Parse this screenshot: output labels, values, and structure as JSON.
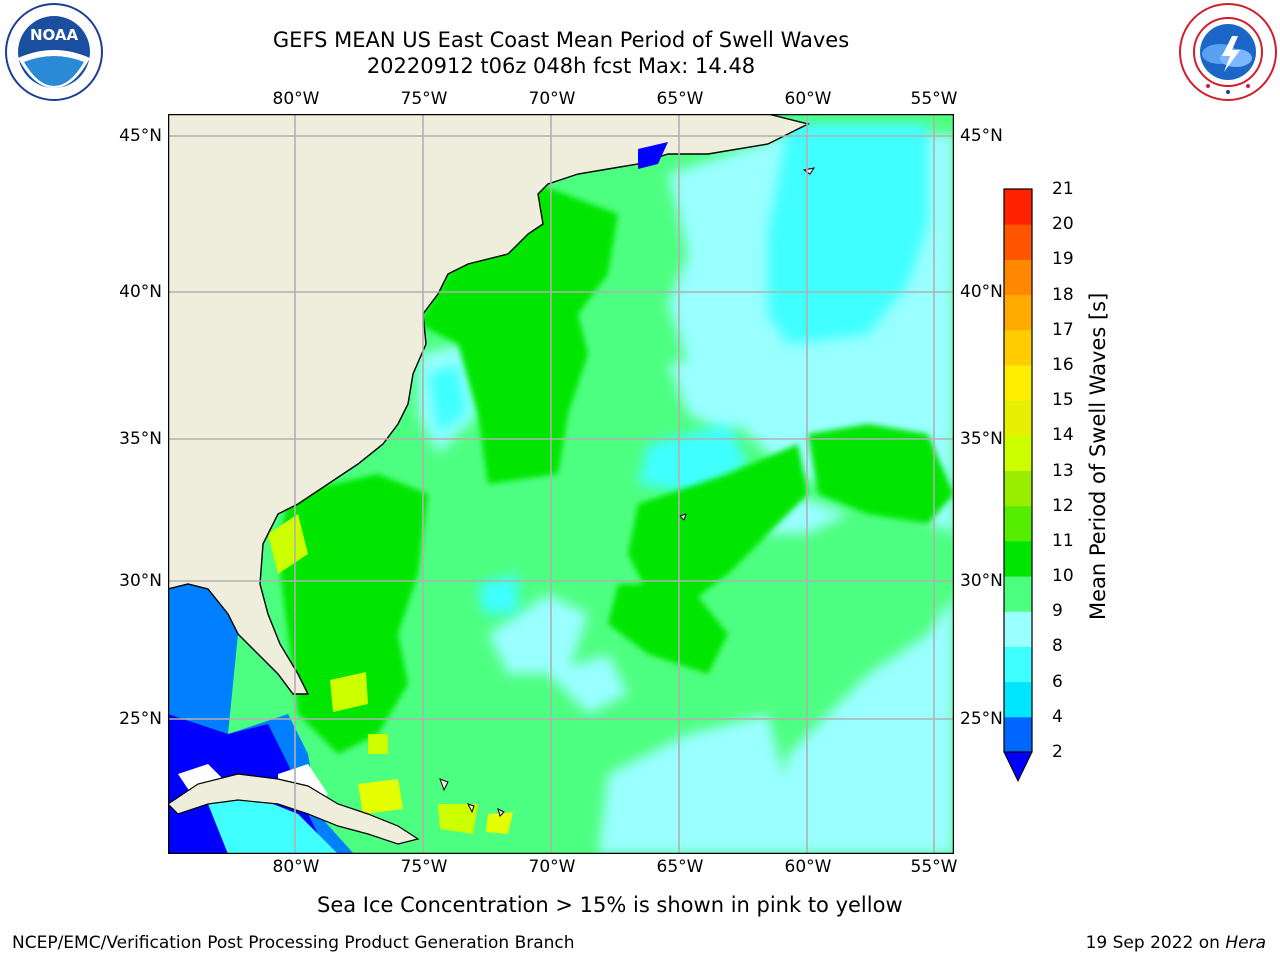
{
  "header": {
    "title_line1": "GEFS MEAN US East Coast Mean Period of Swell Waves",
    "title_line2": "20220912 t06z 048h fcst   Max: 14.48"
  },
  "logos": {
    "left": {
      "icon": "noaa-logo-icon",
      "text": "NOAA"
    },
    "right": {
      "icon": "nws-logo-icon",
      "text": "NATIONAL WEATHER SERVICE"
    }
  },
  "map": {
    "lon_ticks": [
      "80°W",
      "75°W",
      "70°W",
      "65°W",
      "60°W",
      "55°W"
    ],
    "lat_ticks": [
      "45°N",
      "40°N",
      "35°N",
      "30°N",
      "25°N"
    ],
    "colors": {
      "land": "#efeddc",
      "coast": "#000000",
      "grid": "#b0b0b0",
      "lvl_2_4": "#0000ff",
      "lvl_4_6": "#0080ff",
      "lvl_6_8": "#00ffff",
      "lvl_8_9": "#80ffff",
      "lvl_9_10": "#4dff80",
      "lvl_10_11": "#00e600",
      "lvl_12_13": "#ccff00",
      "lvl_13_14": "#e6ff00"
    }
  },
  "colorbar": {
    "label": "Mean Period of Swell Waves [s]",
    "ticks": [
      "2",
      "4",
      "6",
      "8",
      "9",
      "10",
      "11",
      "12",
      "13",
      "14",
      "15",
      "16",
      "17",
      "18",
      "19",
      "20",
      "21"
    ],
    "colors": [
      "#0066ff",
      "#00e6ff",
      "#40ffff",
      "#99ffff",
      "#4dff80",
      "#00e600",
      "#55ee00",
      "#99ee00",
      "#ccff00",
      "#e6f000",
      "#ffee00",
      "#ffcc00",
      "#ffaa00",
      "#ff8800",
      "#ff5500",
      "#ff2200"
    ],
    "extend_color": "#0000ff"
  },
  "note": "Sea Ice Concentration > 15% is shown in pink to yellow",
  "footer": {
    "left": "NCEP/EMC/Verification Post Processing Product Generation Branch",
    "right_date": "19 Sep 2022 on ",
    "right_machine": "Hera"
  }
}
